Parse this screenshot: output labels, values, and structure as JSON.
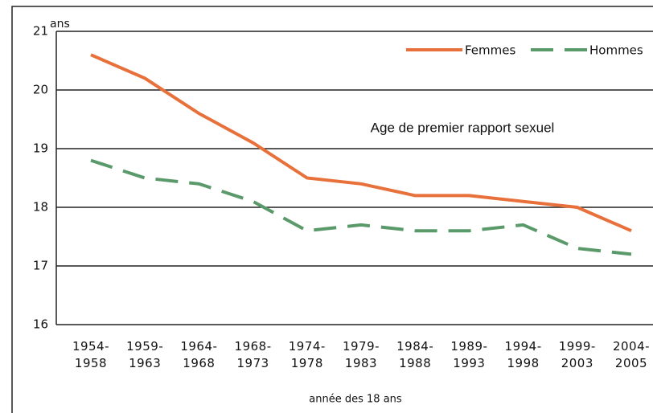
{
  "chart_data": {
    "type": "line",
    "annotation": "Age de premier rapport sexuel",
    "y_label": "ans",
    "x_label": "année des 18 ans",
    "categories": [
      "1954-\n1958",
      "1959-\n1963",
      "1964-\n1968",
      "1968-\n1973",
      "1974-\n1978",
      "1979-\n1983",
      "1984-\n1988",
      "1989-\n1993",
      "1994-\n1998",
      "1999-\n2003",
      "2004-\n2005"
    ],
    "series": [
      {
        "name": "Femmes",
        "color": "#e8703a",
        "dashed": false,
        "values": [
          20.6,
          20.2,
          19.6,
          19.1,
          18.5,
          18.4,
          18.2,
          18.2,
          18.1,
          18.0,
          17.6
        ]
      },
      {
        "name": "Hommes",
        "color": "#5a9a6a",
        "dashed": true,
        "values": [
          18.8,
          18.5,
          18.4,
          18.1,
          17.6,
          17.7,
          17.6,
          17.6,
          17.7,
          17.3,
          17.2
        ]
      }
    ],
    "ylim": [
      16,
      21
    ],
    "yticks": [
      16,
      17,
      18,
      19,
      20,
      21
    ],
    "grid": true,
    "legend": "top-right"
  }
}
